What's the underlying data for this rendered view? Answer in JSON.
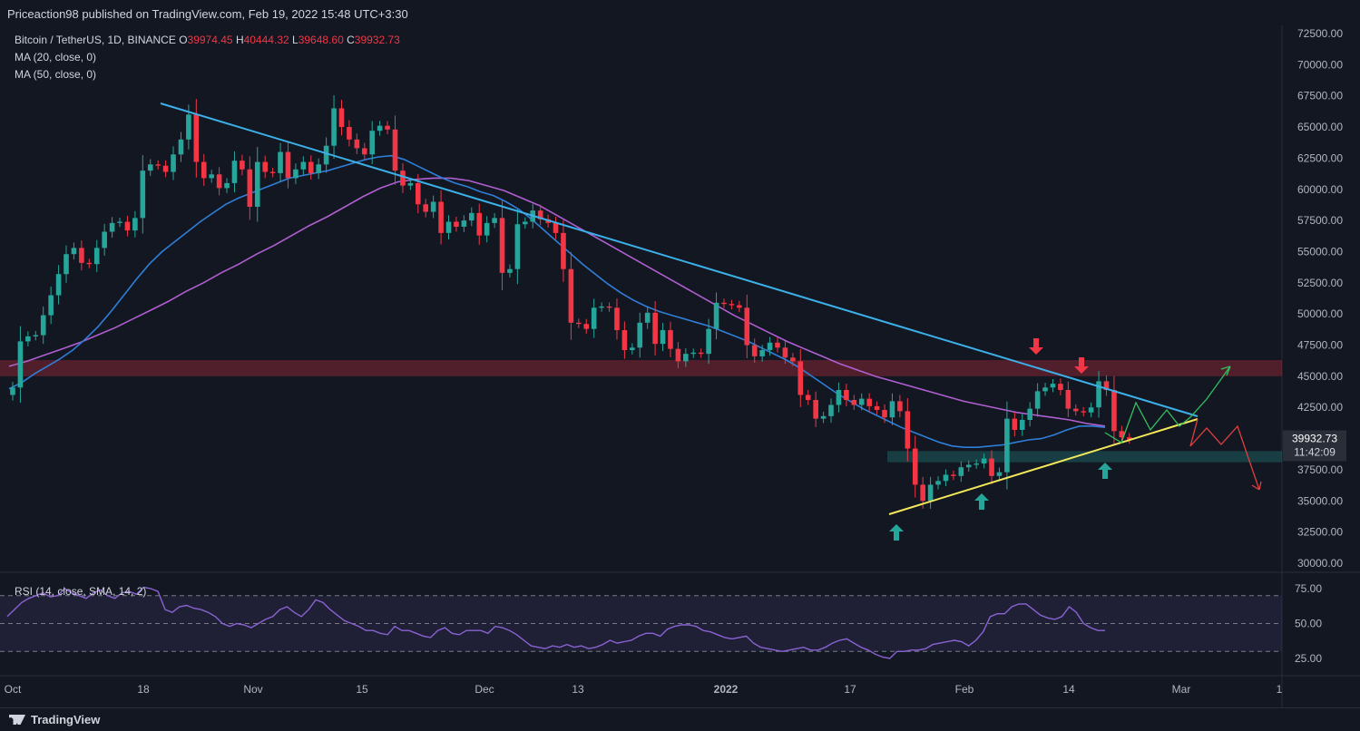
{
  "header": {
    "published": "Priceaction98 published on TradingView.com, Feb 19, 2022 15:48 UTC+3:30"
  },
  "legend": {
    "symbol": "Bitcoin / TetherUS, 1D, BINANCE",
    "o_label": "O",
    "o": "39974.45",
    "h_label": "H",
    "h": "40444.32",
    "l_label": "L",
    "l": "39648.60",
    "c_label": "C",
    "c": "39932.73",
    "ma20": "MA (20, close, 0)",
    "ma50": "MA (50, close, 0)"
  },
  "rsi_legend": "RSI (14, close, SMA, 14, 2)",
  "price_label": {
    "price": "39932.73",
    "countdown": "11:42:09"
  },
  "footer": {
    "brand": "TradingView"
  },
  "colors": {
    "up": "#26a69a",
    "down": "#f23645",
    "ma20": "#2f7ed8",
    "ma50": "#b05fd0",
    "trend": "#3cb0e8",
    "support": "#f2e85a",
    "rsi": "#8a63d2"
  },
  "chart_data": {
    "type": "candlestick",
    "price_axis": {
      "ticks": [
        72500,
        70000,
        67500,
        65000,
        62500,
        60000,
        57500,
        55000,
        52500,
        50000,
        47500,
        45000,
        42500,
        40000,
        37500,
        35000,
        32500,
        30000
      ],
      "tick_labels": [
        "72500.00",
        "70000.00",
        "67500.00",
        "65000.00",
        "62500.00",
        "60000.00",
        "57500.00",
        "55000.00",
        "52500.00",
        "50000.00",
        "47500.00",
        "45000.00",
        "42500.00",
        "40000.00",
        "37500.00",
        "35000.00",
        "32500.00",
        "30000.00"
      ]
    },
    "rsi_axis": {
      "ticks": [
        75,
        50,
        25
      ],
      "tick_labels": [
        "75.00",
        "50.00",
        "25.00"
      ]
    },
    "x_axis": {
      "ticks": [
        "Oct",
        "18",
        "Nov",
        "15",
        "Dec",
        "13",
        "2022",
        "17",
        "Feb",
        "14",
        "Mar",
        "1"
      ]
    },
    "closes": [
      44100,
      47800,
      48200,
      48300,
      49900,
      51500,
      53200,
      54800,
      55300,
      54100,
      54000,
      55300,
      56600,
      57300,
      57400,
      56700,
      57700,
      61500,
      62000,
      61900,
      61400,
      62800,
      64000,
      66000,
      62200,
      60900,
      61200,
      60100,
      60500,
      62300,
      61600,
      58600,
      62200,
      61400,
      61300,
      63000,
      60900,
      61600,
      62200,
      61300,
      62000,
      63500,
      66500,
      65000,
      64000,
      63300,
      62800,
      64700,
      65100,
      64800,
      61500,
      60300,
      60500,
      58800,
      58200,
      59000,
      56500,
      57400,
      57000,
      57500,
      58100,
      56300,
      57300,
      57700,
      53300,
      53600,
      57200,
      57400,
      58300,
      57600,
      57300,
      56500,
      53600,
      49300,
      49200,
      48800,
      50500,
      50600,
      50500,
      48700,
      47100,
      47300,
      49300,
      50100,
      47600,
      48700,
      47200,
      46200,
      46800,
      46900,
      46800,
      48800,
      50900,
      50800,
      50700,
      50500,
      47500,
      46600,
      47100,
      47700,
      47300,
      46500,
      46200,
      43500,
      43100,
      41600,
      41800,
      42700,
      43900,
      43100,
      42700,
      43200,
      42600,
      42300,
      41700,
      43000,
      42200,
      39200,
      36300,
      35000,
      36300,
      36600,
      37100,
      37000,
      37700,
      37900,
      38000,
      38400,
      37000,
      37300,
      41600,
      40700,
      41500,
      42400,
      43800,
      44100,
      44400,
      43900,
      42400,
      42200,
      42100,
      42500,
      44600,
      43900,
      40600,
      40100,
      39933
    ],
    "ma20": [
      44000,
      44500,
      45200,
      45800,
      46400,
      47100,
      48000,
      49000,
      50200,
      51500,
      52800,
      54000,
      55000,
      55800,
      56600,
      57400,
      58100,
      58800,
      59300,
      59700,
      60100,
      60500,
      60900,
      61100,
      61300,
      61500,
      61800,
      62100,
      62400,
      62600,
      62700,
      62400,
      61900,
      61400,
      60900,
      60500,
      60200,
      59800,
      59500,
      59000,
      58400,
      57600,
      56700,
      55800,
      54900,
      54000,
      53200,
      52400,
      51700,
      51100,
      50600,
      50200,
      49900,
      49600,
      49300,
      49000,
      48600,
      48200,
      47800,
      47300,
      46800,
      46300,
      45700,
      45000,
      44300,
      43600,
      43000,
      42400,
      41900,
      41400,
      40900,
      40500,
      40100,
      39700,
      39400,
      39300,
      39300,
      39400,
      39500,
      39700,
      39900,
      40000,
      40300,
      40700,
      41000,
      41000,
      40900
    ],
    "ma50": [
      45800,
      46200,
      46700,
      47200,
      47700,
      48300,
      48900,
      49600,
      50300,
      51000,
      51800,
      52500,
      53300,
      54000,
      54800,
      55500,
      56300,
      57100,
      57800,
      58600,
      59400,
      60100,
      60600,
      60800,
      60900,
      60900,
      60700,
      60300,
      59900,
      59300,
      58700,
      57900,
      57100,
      56300,
      55500,
      54700,
      53900,
      53100,
      52300,
      51500,
      50700,
      49900,
      49200,
      48500,
      47800,
      47200,
      46600,
      46000,
      45500,
      45000,
      44600,
      44200,
      43800,
      43400,
      43000,
      42700,
      42400,
      42100,
      41900,
      41700,
      41500,
      41200,
      41000
    ],
    "rsi": [
      55,
      60,
      65,
      68,
      70,
      72,
      69,
      70,
      75,
      72,
      70,
      68,
      72,
      74,
      70,
      68,
      72,
      73,
      71,
      76,
      75,
      73,
      60,
      58,
      62,
      63,
      61,
      60,
      58,
      55,
      50,
      48,
      50,
      49,
      47,
      50,
      53,
      55,
      60,
      62,
      58,
      55,
      60,
      67,
      65,
      60,
      56,
      52,
      50,
      48,
      45,
      45,
      43,
      42,
      48,
      45,
      45,
      43,
      41,
      40,
      45,
      47,
      43,
      42,
      45,
      45,
      45,
      43,
      48,
      47,
      45,
      42,
      38,
      34,
      33,
      32,
      34,
      33,
      35,
      33,
      34,
      32,
      33,
      35,
      38,
      36,
      37,
      38,
      41,
      43,
      43,
      41,
      46,
      48,
      49,
      49,
      48,
      45,
      44,
      42,
      40,
      39,
      40,
      41,
      36,
      33,
      32,
      31,
      30,
      31,
      32,
      33,
      31,
      31,
      33,
      36,
      38,
      39,
      36,
      33,
      31,
      28,
      26,
      25,
      30,
      30,
      31,
      31,
      32,
      35,
      36,
      37,
      38,
      37,
      34,
      38,
      44,
      55,
      57,
      57,
      62,
      64,
      64,
      60,
      56,
      54,
      53,
      55,
      62,
      58,
      50,
      47,
      45,
      45
    ]
  }
}
